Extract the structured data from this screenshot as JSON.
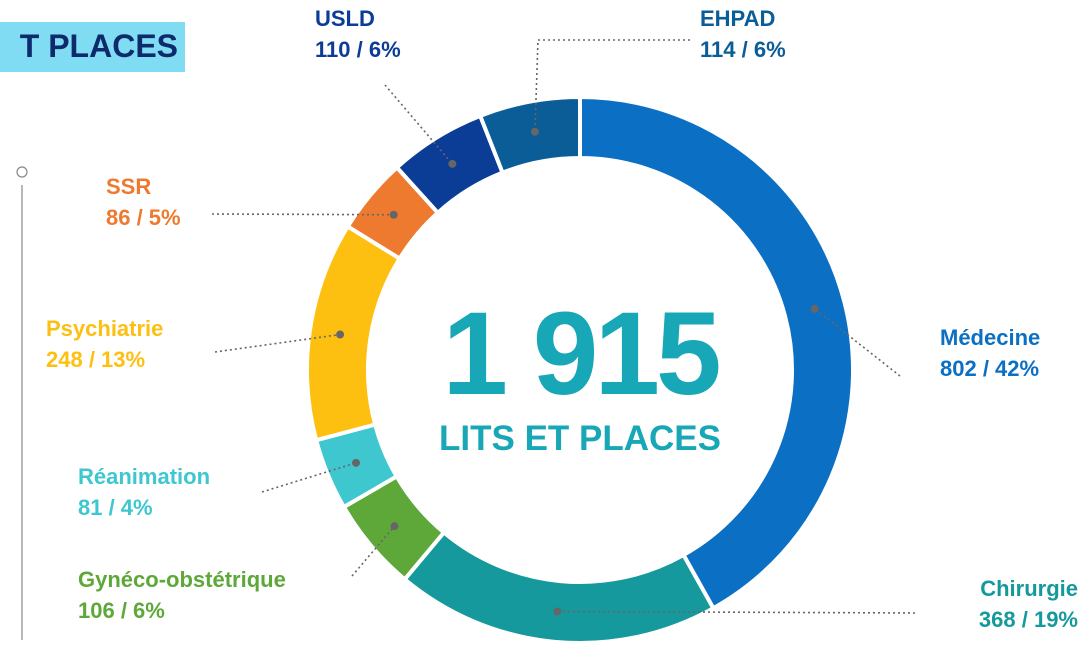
{
  "chart_data": {
    "type": "donut",
    "title": "T PLACES",
    "center_text": "1 915",
    "center_subtitle": "LITS ET PLACES",
    "categories": [
      "Médecine",
      "Chirurgie",
      "Gynéco-obstétrique",
      "Réanimation",
      "Psychiatrie",
      "SSR",
      "USLD",
      "EHPAD"
    ],
    "values": [
      802,
      368,
      106,
      81,
      248,
      86,
      110,
      114
    ],
    "value_labels": [
      "802 / 42%",
      "368 / 19%",
      "106 / 6%",
      "81 / 4%",
      "248 / 13%",
      "86 / 5%",
      "110 / 6%",
      "114 / 6%"
    ],
    "colors": [
      "#0b6fc4",
      "#15999c",
      "#5ea839",
      "#3fc7cf",
      "#fdc010",
      "#ee7a30",
      "#0b3c96",
      "#0a5d97"
    ]
  }
}
